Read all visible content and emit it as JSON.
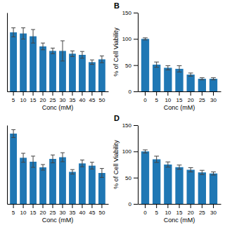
{
  "chart_data": [
    {
      "type": "bar",
      "categories": [
        "5",
        "10",
        "15",
        "20",
        "25",
        "30",
        "35",
        "40",
        "45",
        "50"
      ],
      "values": [
        105,
        103,
        98,
        80,
        72,
        72,
        67,
        65,
        52,
        57
      ],
      "errors": [
        8,
        10,
        12,
        6,
        5,
        18,
        5,
        6,
        4,
        6
      ],
      "xlabel": "Conc (mM)",
      "ylim": [
        0,
        140
      ],
      "tick_labels": "x"
    },
    {
      "type": "bar",
      "title": "B",
      "categories": [
        "0",
        "5",
        "10",
        "15",
        "20",
        "25",
        "30"
      ],
      "values": [
        100,
        51,
        45,
        43,
        32,
        24,
        24
      ],
      "errors": [
        2,
        5,
        4,
        6,
        3,
        2,
        2
      ],
      "xlabel": "Conc (mM)",
      "ylabel": "% of Cell Viability",
      "ylim": [
        0,
        150
      ],
      "yticks": [
        0,
        50,
        100,
        150
      ]
    },
    {
      "type": "bar",
      "categories": [
        "5",
        "10",
        "15",
        "20",
        "25",
        "30",
        "35",
        "40",
        "45",
        "50"
      ],
      "values": [
        125,
        82,
        75,
        65,
        80,
        83,
        57,
        72,
        68,
        55
      ],
      "errors": [
        7,
        8,
        10,
        5,
        7,
        8,
        4,
        6,
        6,
        8
      ],
      "xlabel": "Conc (mM)",
      "ylim": [
        0,
        140
      ],
      "tick_labels": "x"
    },
    {
      "type": "bar",
      "title": "D",
      "categories": [
        "0",
        "5",
        "10",
        "15",
        "20",
        "25",
        "30"
      ],
      "values": [
        100,
        85,
        75,
        70,
        65,
        60,
        58
      ],
      "errors": [
        3,
        6,
        5,
        4,
        4,
        4,
        3
      ],
      "xlabel": "Conc (mM)",
      "ylabel": "% of Cell Viability",
      "ylim": [
        0,
        150
      ],
      "yticks": [
        0,
        50,
        100,
        150
      ]
    }
  ]
}
